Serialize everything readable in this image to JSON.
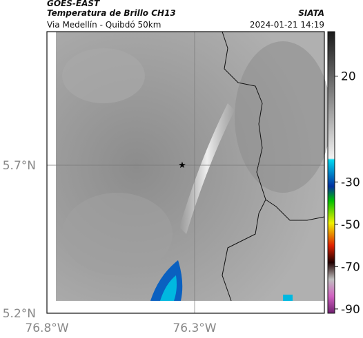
{
  "header": {
    "source": "GOES-EAST",
    "title": "Temperatura de Brillo CH13",
    "brand": "SIATA",
    "region": "Via Medellín - Quibdó 50km",
    "timestamp": "2024-01-21 14:19"
  },
  "map": {
    "lat_labels": [
      "5.7°N",
      "5.2°N"
    ],
    "lon_labels": [
      "76.8°W",
      "76.3°W"
    ]
  },
  "colorbar": {
    "range": [
      -92,
      41
    ],
    "ticks": [
      20,
      -30,
      -50,
      -70,
      -90
    ]
  }
}
